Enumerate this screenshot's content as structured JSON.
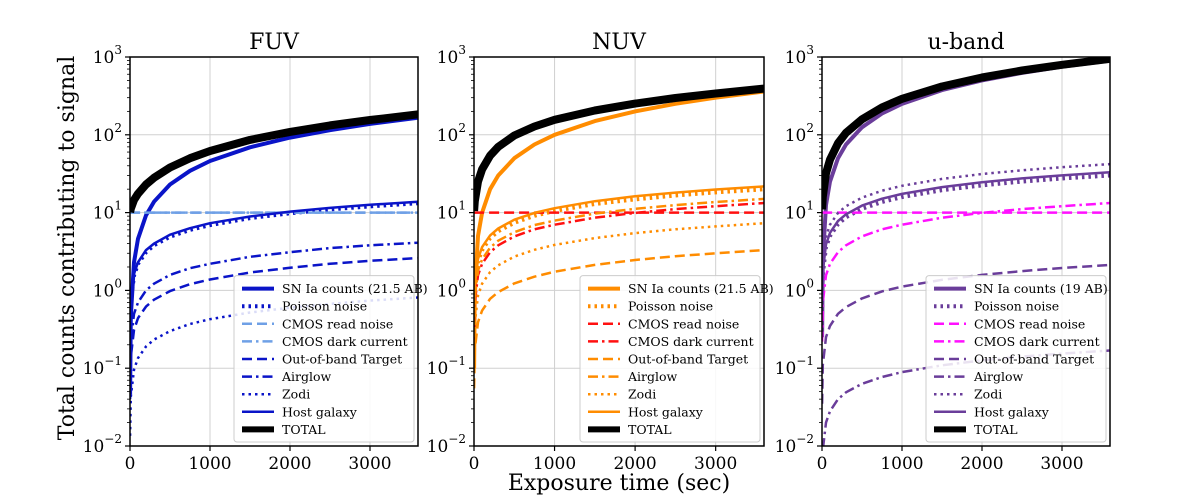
{
  "figure": {
    "ylabel": "Total counts contributing to signal",
    "xlabel": "Exposure time (sec)"
  },
  "chart_data": [
    {
      "type": "line",
      "title": "FUV",
      "xlim": [
        0,
        3600
      ],
      "ylim": [
        0.01,
        1000
      ],
      "yscale": "log",
      "grid": true,
      "legend_position": "lower-right",
      "x_ticks": [
        0,
        1000,
        2000,
        3000
      ],
      "x_tick_labels": [
        "0",
        "1000",
        "2000",
        "3000"
      ],
      "y_ticks": [
        0.01,
        0.1,
        1,
        10,
        100,
        1000
      ],
      "y_tick_labels": [
        {
          "base": "10",
          "exp": "−2"
        },
        {
          "base": "10",
          "exp": "−1"
        },
        {
          "base": "10",
          "exp": "0"
        },
        {
          "base": "10",
          "exp": "1"
        },
        {
          "base": "10",
          "exp": "2"
        },
        {
          "base": "10",
          "exp": "3"
        }
      ],
      "x": [
        1,
        10,
        50,
        100,
        200,
        300,
        500,
        750,
        1000,
        1500,
        2000,
        2500,
        3000,
        3600
      ],
      "series": [
        {
          "name": "SN Ia  counts (21.5 AB)",
          "style": "solid",
          "width": 4,
          "color": "#0a14c8",
          "values": [
            0.046,
            0.46,
            2.3,
            4.6,
            9.2,
            13.8,
            23,
            34.5,
            46,
            69,
            92,
            115,
            138,
            166
          ]
        },
        {
          "name": "Poisson noise",
          "style": "dotted",
          "width": 4,
          "color": "#0a14c8",
          "values": [
            0.22,
            0.69,
            1.55,
            2.2,
            3.1,
            3.8,
            4.9,
            6.0,
            6.9,
            8.5,
            9.8,
            11.0,
            12.0,
            13.2
          ]
        },
        {
          "name": "CMOS read noise",
          "style": "dashed",
          "width": 2.5,
          "color": "#6fa0e6",
          "values": [
            10,
            10,
            10,
            10,
            10,
            10,
            10,
            10,
            10,
            10,
            10,
            10,
            10,
            10
          ]
        },
        {
          "name": "CMOS dark current",
          "style": "dashdot",
          "width": 2.5,
          "color": "#6fa0e6",
          "values": [
            10,
            10,
            10,
            10,
            10,
            10,
            10,
            10,
            10,
            10,
            10,
            10,
            10,
            10
          ]
        },
        {
          "name": "Out-of-band Target",
          "style": "dashed",
          "width": 2.5,
          "color": "#0a14c8",
          "values": [
            0.04,
            0.14,
            0.31,
            0.44,
            0.62,
            0.76,
            0.98,
            1.2,
            1.38,
            1.7,
            1.95,
            2.2,
            2.4,
            2.6
          ]
        },
        {
          "name": "Airglow",
          "style": "dashdot",
          "width": 2.5,
          "color": "#0a14c8",
          "values": [
            0.07,
            0.22,
            0.5,
            0.7,
            1.0,
            1.22,
            1.58,
            1.93,
            2.2,
            2.7,
            3.1,
            3.5,
            3.8,
            4.1
          ]
        },
        {
          "name": "Zodi",
          "style": "dotted",
          "width": 2.5,
          "color": "#0a14c8",
          "values": [
            0.0135,
            0.043,
            0.096,
            0.135,
            0.19,
            0.233,
            0.3,
            0.37,
            0.427,
            0.52,
            0.6,
            0.67,
            0.74,
            0.81
          ]
        },
        {
          "name": "Host galaxy",
          "style": "solid",
          "width": 2.5,
          "color": "#0a14c8",
          "values": [
            0.23,
            0.73,
            1.63,
            2.3,
            3.3,
            4.0,
            5.2,
            6.3,
            7.3,
            8.9,
            10.3,
            11.5,
            12.6,
            13.8
          ]
        },
        {
          "name": "TOTAL",
          "style": "solid",
          "width": 8,
          "color": "#000000",
          "values": [
            10.1,
            11.2,
            14.5,
            17.5,
            23,
            28,
            38,
            50,
            62,
            86,
            109,
            132,
            155,
            183
          ]
        }
      ]
    },
    {
      "type": "line",
      "title": "NUV",
      "xlim": [
        0,
        3600
      ],
      "ylim": [
        0.01,
        1000
      ],
      "yscale": "log",
      "grid": true,
      "legend_position": "lower-right",
      "x_ticks": [
        0,
        1000,
        2000,
        3000
      ],
      "x_tick_labels": [
        "0",
        "1000",
        "2000",
        "3000"
      ],
      "y_ticks": [
        0.01,
        0.1,
        1,
        10,
        100,
        1000
      ],
      "y_tick_labels": [
        {
          "base": "10",
          "exp": "−2"
        },
        {
          "base": "10",
          "exp": "−1"
        },
        {
          "base": "10",
          "exp": "0"
        },
        {
          "base": "10",
          "exp": "1"
        },
        {
          "base": "10",
          "exp": "2"
        },
        {
          "base": "10",
          "exp": "3"
        }
      ],
      "x": [
        1,
        10,
        50,
        100,
        200,
        300,
        500,
        750,
        1000,
        1500,
        2000,
        2500,
        3000,
        3600
      ],
      "series": [
        {
          "name": "SN Ia  counts (21.5 AB)",
          "style": "solid",
          "width": 4,
          "color": "#ff8c00",
          "values": [
            0.1,
            1.0,
            5.0,
            10,
            20,
            30,
            50,
            75,
            100,
            150,
            200,
            250,
            300,
            360
          ]
        },
        {
          "name": "Poisson noise",
          "style": "dotted",
          "width": 4,
          "color": "#ff8c00",
          "values": [
            0.33,
            1.05,
            2.35,
            3.3,
            4.7,
            5.75,
            7.4,
            9.1,
            10.5,
            12.9,
            14.8,
            16.6,
            18.2,
            19.9
          ]
        },
        {
          "name": "CMOS read noise",
          "style": "dashed",
          "width": 2.5,
          "color": "#ff1010",
          "values": [
            10,
            10,
            10,
            10,
            10,
            10,
            10,
            10,
            10,
            10,
            10,
            10,
            10,
            10
          ]
        },
        {
          "name": "CMOS dark current",
          "style": "dashdot",
          "width": 2.5,
          "color": "#ff1010",
          "values": [
            0.22,
            0.7,
            1.57,
            2.2,
            3.1,
            3.8,
            4.95,
            6.1,
            7.0,
            8.6,
            9.9,
            11.1,
            12.1,
            13.3
          ]
        },
        {
          "name": "Out-of-band Target",
          "style": "dashed",
          "width": 2.5,
          "color": "#ff8c00",
          "values": [
            0.055,
            0.175,
            0.39,
            0.55,
            0.78,
            0.95,
            1.23,
            1.5,
            1.74,
            2.13,
            2.46,
            2.75,
            3.0,
            3.3
          ]
        },
        {
          "name": "Airglow",
          "style": "dashdot",
          "width": 2.5,
          "color": "#ff8c00",
          "values": [
            0.25,
            0.8,
            1.8,
            2.5,
            3.55,
            4.35,
            5.6,
            6.9,
            7.9,
            9.7,
            11.2,
            12.5,
            13.7,
            15.0
          ]
        },
        {
          "name": "Zodi",
          "style": "dotted",
          "width": 2.5,
          "color": "#ff8c00",
          "values": [
            0.12,
            0.38,
            0.86,
            1.22,
            1.72,
            2.1,
            2.72,
            3.33,
            3.85,
            4.7,
            5.45,
            6.1,
            6.65,
            7.3
          ]
        },
        {
          "name": "Host galaxy",
          "style": "solid",
          "width": 2.5,
          "color": "#ff8c00",
          "values": [
            0.36,
            1.15,
            2.55,
            3.6,
            5.1,
            6.25,
            8.1,
            9.9,
            11.4,
            14.0,
            16.2,
            18.1,
            19.8,
            21.7
          ]
        },
        {
          "name": "TOTAL",
          "style": "solid",
          "width": 8,
          "color": "#000000",
          "values": [
            10.5,
            14,
            25,
            36,
            54,
            70,
            98,
            128,
            156,
            205,
            252,
            297,
            340,
            392
          ]
        }
      ]
    },
    {
      "type": "line",
      "title": "u-band",
      "xlim": [
        0,
        3600
      ],
      "ylim": [
        0.01,
        1000
      ],
      "yscale": "log",
      "grid": true,
      "legend_position": "lower-right",
      "x_ticks": [
        0,
        1000,
        2000,
        3000
      ],
      "x_tick_labels": [
        "0",
        "1000",
        "2000",
        "3000"
      ],
      "y_ticks": [
        0.01,
        0.1,
        1,
        10,
        100,
        1000
      ],
      "y_tick_labels": [
        {
          "base": "10",
          "exp": "−2"
        },
        {
          "base": "10",
          "exp": "−1"
        },
        {
          "base": "10",
          "exp": "0"
        },
        {
          "base": "10",
          "exp": "1"
        },
        {
          "base": "10",
          "exp": "2"
        },
        {
          "base": "10",
          "exp": "3"
        }
      ],
      "x": [
        1,
        10,
        50,
        100,
        200,
        300,
        500,
        750,
        1000,
        1500,
        2000,
        2500,
        3000,
        3600
      ],
      "series": [
        {
          "name": "SN Ia  counts (19 AB)",
          "style": "solid",
          "width": 4,
          "color": "#6a3d9a",
          "values": [
            0.25,
            2.5,
            12.5,
            25,
            50,
            75,
            125,
            188,
            250,
            375,
            500,
            625,
            750,
            900
          ]
        },
        {
          "name": "Poisson noise",
          "style": "dotted",
          "width": 4,
          "color": "#6a3d9a",
          "values": [
            0.5,
            1.6,
            3.6,
            5.0,
            7.1,
            8.7,
            11.2,
            13.7,
            15.8,
            19.4,
            22.4,
            25.0,
            27.4,
            30.0
          ]
        },
        {
          "name": "CMOS read noise",
          "style": "dashed",
          "width": 2.5,
          "color": "#ff10ff",
          "values": [
            10,
            10,
            10,
            10,
            10,
            10,
            10,
            10,
            10,
            10,
            10,
            10,
            10,
            10
          ]
        },
        {
          "name": "CMOS dark current",
          "style": "dashdot",
          "width": 2.5,
          "color": "#ff10ff",
          "values": [
            0.22,
            0.7,
            1.57,
            2.2,
            3.1,
            3.8,
            4.95,
            6.1,
            7.0,
            8.6,
            9.9,
            11.1,
            12.1,
            13.3
          ]
        },
        {
          "name": "Out-of-band Target",
          "style": "dashed",
          "width": 2.5,
          "color": "#6a3d9a",
          "values": [
            0.035,
            0.11,
            0.25,
            0.35,
            0.5,
            0.61,
            0.79,
            0.97,
            1.12,
            1.37,
            1.58,
            1.77,
            1.94,
            2.12
          ]
        },
        {
          "name": "Airglow",
          "style": "dashdot",
          "width": 2.5,
          "color": "#6a3d9a",
          "values": [
            0.0028,
            0.009,
            0.02,
            0.028,
            0.04,
            0.049,
            0.063,
            0.077,
            0.089,
            0.109,
            0.126,
            0.141,
            0.154,
            0.169
          ]
        },
        {
          "name": "Zodi",
          "style": "dotted",
          "width": 2.5,
          "color": "#6a3d9a",
          "values": [
            0.7,
            2.2,
            4.9,
            7.0,
            9.9,
            12.1,
            15.6,
            19.1,
            22.1,
            27.1,
            31.3,
            35.0,
            38.3,
            42.0
          ]
        },
        {
          "name": "Host galaxy",
          "style": "solid",
          "width": 2.5,
          "color": "#6a3d9a",
          "values": [
            0.55,
            1.75,
            3.9,
            5.5,
            7.8,
            9.5,
            12.3,
            15.1,
            17.4,
            21.3,
            24.6,
            27.5,
            30.1,
            33.0
          ]
        },
        {
          "name": "TOTAL",
          "style": "solid",
          "width": 8,
          "color": "#000000",
          "values": [
            11,
            16,
            32,
            48,
            78,
            106,
            158,
            225,
            290,
            418,
            545,
            670,
            795,
            945
          ]
        }
      ]
    }
  ]
}
